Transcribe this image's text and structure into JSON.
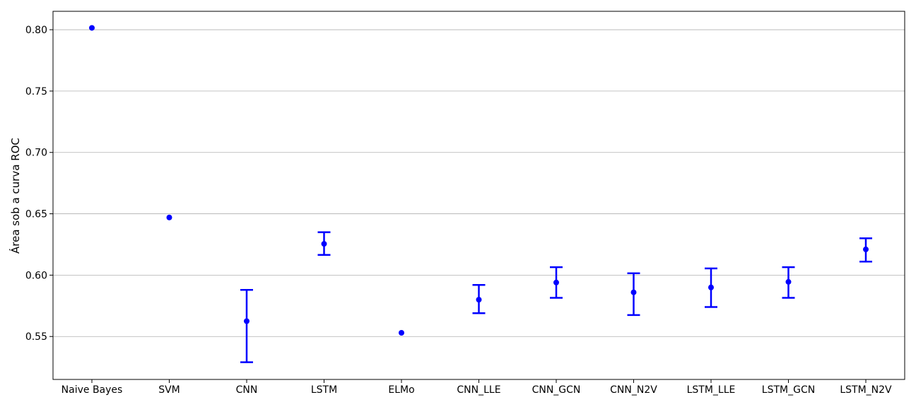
{
  "chart_data": {
    "type": "scatter",
    "title": "",
    "xlabel": "",
    "ylabel": "Área sob a curva ROC",
    "categories": [
      "Naive Bayes",
      "SVM",
      "CNN",
      "LSTM",
      "ELMo",
      "CNN_LLE",
      "CNN_GCN",
      "CNN_N2V",
      "LSTM_LLE",
      "LSTM_GCN",
      "LSTM_N2V"
    ],
    "values": [
      0.8015,
      0.647,
      0.5625,
      0.6255,
      0.553,
      0.58,
      0.594,
      0.586,
      0.59,
      0.5945,
      0.621
    ],
    "error_low": [
      null,
      null,
      0.529,
      0.6165,
      null,
      0.569,
      0.5815,
      0.5675,
      0.574,
      0.5815,
      0.611
    ],
    "error_high": [
      null,
      null,
      0.588,
      0.635,
      null,
      0.592,
      0.6065,
      0.6015,
      0.6055,
      0.6065,
      0.63
    ],
    "ylim": [
      0.515,
      0.815
    ],
    "yticks": [
      "0.55",
      "0.60",
      "0.65",
      "0.70",
      "0.75",
      "0.80"
    ],
    "grid": "horizontal",
    "color": "#0000ff"
  }
}
